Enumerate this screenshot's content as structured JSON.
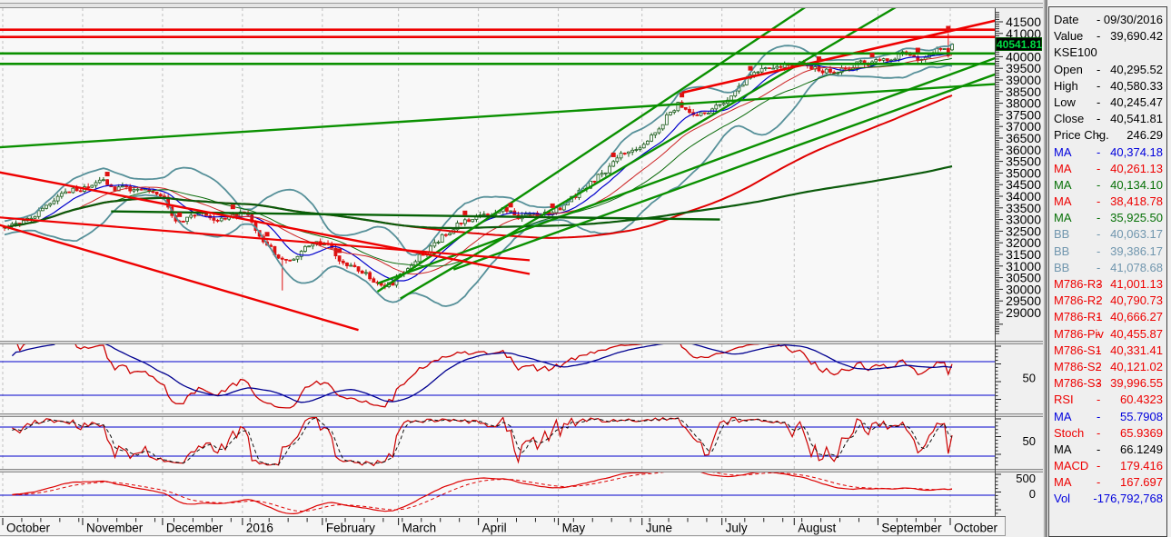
{
  "price_axis": {
    "current_tag": "40541.81"
  },
  "sub_panels": {
    "rsi_label": "50",
    "stoch_label": "50",
    "macd_labels": [
      "500",
      "0"
    ]
  },
  "data_panel": {
    "colors": {
      "black": "#000000",
      "blue": "#0000dd",
      "red": "#ee0000",
      "green": "#067006",
      "bb": "#7096ae"
    },
    "rows": [
      {
        "l": "Date",
        "s": "-",
        "v": "09/30/2016",
        "c": "black"
      },
      {
        "l": "Value",
        "s": "-",
        "v": "39,690.42",
        "c": "black"
      },
      {
        "l": "KSE100",
        "s": "",
        "v": "",
        "c": "black"
      },
      {
        "l": "Open",
        "s": "-",
        "v": "40,295.52",
        "c": "black"
      },
      {
        "l": "High",
        "s": "-",
        "v": "40,580.33",
        "c": "black"
      },
      {
        "l": "Low",
        "s": "-",
        "v": "40,245.47",
        "c": "black"
      },
      {
        "l": "Close",
        "s": "-",
        "v": "40,541.81",
        "c": "black"
      },
      {
        "l": "Price Chg.",
        "s": "-",
        "v": "246.29",
        "c": "black"
      },
      {
        "l": "MA",
        "s": "-",
        "v": "40,374.18",
        "c": "blue"
      },
      {
        "l": "MA",
        "s": "-",
        "v": "40,261.13",
        "c": "red"
      },
      {
        "l": "MA",
        "s": "-",
        "v": "40,134.10",
        "c": "green"
      },
      {
        "l": "MA",
        "s": "-",
        "v": "38,418.78",
        "c": "red"
      },
      {
        "l": "MA",
        "s": "-",
        "v": "35,925.50",
        "c": "green"
      },
      {
        "l": "BB",
        "s": "-",
        "v": "40,063.17",
        "c": "bb"
      },
      {
        "l": "BB",
        "s": "-",
        "v": "39,386.17",
        "c": "bb"
      },
      {
        "l": "BB",
        "s": "-",
        "v": "41,078.68",
        "c": "bb"
      },
      {
        "l": "M786-R3",
        "s": "-",
        "v": "41,001.13",
        "c": "red"
      },
      {
        "l": "M786-R2",
        "s": "-",
        "v": "40,790.73",
        "c": "red"
      },
      {
        "l": "M786-R1",
        "s": "-",
        "v": "40,666.27",
        "c": "red"
      },
      {
        "l": "M786-Piv",
        "s": "-",
        "v": "40,455.87",
        "c": "red"
      },
      {
        "l": "M786-S1",
        "s": "-",
        "v": "40,331.41",
        "c": "red"
      },
      {
        "l": "M786-S2",
        "s": "-",
        "v": "40,121.02",
        "c": "red"
      },
      {
        "l": "M786-S3",
        "s": "-",
        "v": "39,996.55",
        "c": "red"
      },
      {
        "l": "RSI",
        "s": "-",
        "v": "60.4323",
        "c": "red"
      },
      {
        "l": "MA",
        "s": "-",
        "v": "55.7908",
        "c": "blue"
      },
      {
        "l": "Stoch",
        "s": "-",
        "v": "65.9369",
        "c": "red"
      },
      {
        "l": "MA",
        "s": "-",
        "v": "66.1249",
        "c": "black"
      },
      {
        "l": "MACD",
        "s": "-",
        "v": "179.416",
        "c": "red"
      },
      {
        "l": "MA",
        "s": "-",
        "v": "167.697",
        "c": "red"
      },
      {
        "l": "Vol",
        "s": "",
        "v": "-176,792,768",
        "c": "blue"
      }
    ]
  },
  "chart_data": {
    "type": "candlestick",
    "instrument": "KSE100",
    "x_axis": {
      "months": [
        {
          "label": "October",
          "day": 0
        },
        {
          "label": "November",
          "day": 21
        },
        {
          "label": "December",
          "day": 42
        },
        {
          "label": "2016",
          "day": 63
        },
        {
          "label": "February",
          "day": 84
        },
        {
          "label": "March",
          "day": 104
        },
        {
          "label": "April",
          "day": 125
        },
        {
          "label": "May",
          "day": 146
        },
        {
          "label": "June",
          "day": 168
        },
        {
          "label": "July",
          "day": 189
        },
        {
          "label": "August",
          "day": 208
        },
        {
          "label": "September",
          "day": 230
        },
        {
          "label": "October",
          "day": 249
        }
      ]
    },
    "y_axis": {
      "min": 29000,
      "max": 41500,
      "step": 500,
      "minor_step": 100
    },
    "close_anchors": [
      [
        0,
        32650
      ],
      [
        8,
        33300
      ],
      [
        16,
        34050
      ],
      [
        21,
        34400
      ],
      [
        26,
        34520
      ],
      [
        34,
        34160
      ],
      [
        42,
        34060
      ],
      [
        45,
        33000
      ],
      [
        50,
        33280
      ],
      [
        57,
        33120
      ],
      [
        63,
        33380
      ],
      [
        68,
        32150
      ],
      [
        73,
        31150
      ],
      [
        78,
        31720
      ],
      [
        84,
        31900
      ],
      [
        90,
        31020
      ],
      [
        97,
        30380
      ],
      [
        102,
        30260
      ],
      [
        104,
        30700
      ],
      [
        112,
        31850
      ],
      [
        120,
        32950
      ],
      [
        125,
        33200
      ],
      [
        131,
        33380
      ],
      [
        137,
        33080
      ],
      [
        143,
        33320
      ],
      [
        146,
        33520
      ],
      [
        152,
        34300
      ],
      [
        158,
        35120
      ],
      [
        163,
        35900
      ],
      [
        168,
        36380
      ],
      [
        173,
        37320
      ],
      [
        177,
        38020
      ],
      [
        181,
        37340
      ],
      [
        185,
        37700
      ],
      [
        189,
        37950
      ],
      [
        194,
        38950
      ],
      [
        199,
        39420
      ],
      [
        204,
        39700
      ],
      [
        208,
        39820
      ],
      [
        213,
        39520
      ],
      [
        218,
        39300
      ],
      [
        224,
        39700
      ],
      [
        230,
        39870
      ],
      [
        236,
        40120
      ],
      [
        241,
        39920
      ],
      [
        245,
        40220
      ],
      [
        248,
        40180
      ],
      [
        249,
        40541.81
      ]
    ],
    "final_candle": {
      "date": "09/30/2016",
      "open": 40295.52,
      "high": 40580.33,
      "low": 40245.47,
      "close": 40541.81
    },
    "prev_candle": {
      "day": 248,
      "open": 40350,
      "high": 41010,
      "low": 39960,
      "close": 40060
    },
    "spike_low": {
      "day": 73,
      "low": 29950
    },
    "hlines": [
      {
        "price": 41160,
        "color": "#ee0000"
      },
      {
        "price": 40850,
        "color": "#ee0000"
      },
      {
        "price": 40140,
        "color": "#0a9000"
      },
      {
        "price": 39690.42,
        "color": "#0a9000"
      }
    ],
    "trendlines": [
      [
        98,
        29900,
        212,
        42300,
        "#0a9000",
        2.4
      ],
      [
        104,
        29600,
        236,
        42300,
        "#0a9000",
        2.4
      ],
      [
        98,
        30250,
        263,
        40100,
        "#0a9000",
        2.4
      ],
      [
        118,
        30850,
        263,
        39400,
        "#0a9000",
        2.4
      ],
      [
        -2,
        36100,
        263,
        38850,
        "#0a9000",
        2.4
      ],
      [
        28,
        33350,
        188,
        33000,
        "#056105",
        2.4
      ],
      [
        -2,
        35050,
        138,
        30660,
        "#ee0000",
        2.4
      ],
      [
        -2,
        32800,
        93,
        28250,
        "#ee0000",
        2.4
      ],
      [
        -2,
        33100,
        138,
        31250,
        "#ee0000",
        2.2
      ],
      [
        178,
        38450,
        263,
        41650,
        "#ee0000",
        2.6
      ]
    ],
    "mas": [
      {
        "period": 10,
        "color": "#0000cc",
        "w": 1.2
      },
      {
        "period": 20,
        "color": "#cc2222",
        "w": 1
      },
      {
        "period": 30,
        "color": "#0b6b0b",
        "w": 1
      },
      {
        "period": 100,
        "color": "#e00000",
        "w": 2
      },
      {
        "period": 200,
        "color": "#0a5a0a",
        "w": 2.2
      }
    ],
    "bollinger": {
      "period": 20,
      "mult": 2.4,
      "color": "#569099",
      "w": 1.8
    },
    "markers": {
      "days": [
        27,
        46,
        60,
        69,
        88,
        121,
        133,
        144,
        160,
        178,
        196,
        214,
        228,
        240,
        248
      ],
      "color": "#dd1111"
    },
    "indicators": {
      "rsi": {
        "period": 14,
        "ma": 14,
        "levels": [
          30,
          70
        ],
        "color": "#cc0000",
        "ma_color": "#000090"
      },
      "stoch": {
        "k": 10,
        "d": 3,
        "levels": [
          20,
          80
        ],
        "k_color": "#cc0000",
        "d_color": "#111111"
      },
      "macd": {
        "fast": 12,
        "slow": 26,
        "signal": 9,
        "color": "#dd0000",
        "zero_level": 0
      }
    },
    "style": {
      "bg": "#f8f8f8",
      "grid": "#c0c0c0",
      "axis_text": "#000000",
      "candle_up": "#1a5c1a",
      "candle_down": "#dd1111",
      "ref": "#0000cc"
    }
  }
}
